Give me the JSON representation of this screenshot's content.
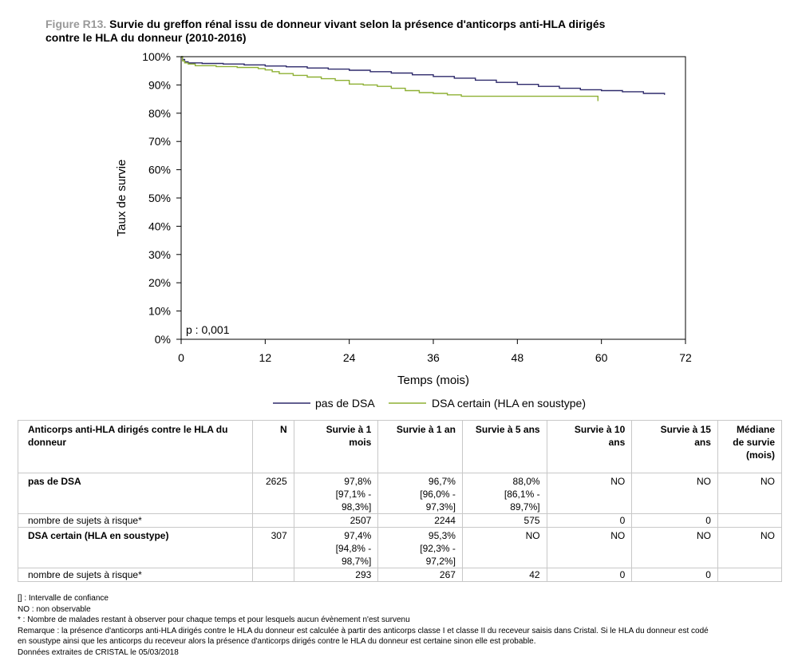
{
  "title": {
    "figure_label": "Figure R13.",
    "text_line1": " Survie du greffon rénal issu de donneur vivant selon la présence d'anticorps anti-HLA dirigés",
    "text_line2": "contre le HLA du donneur (2010-2016)"
  },
  "chart_data": {
    "type": "line",
    "title": "Figure R13. Survie du greffon rénal issu de donneur vivant selon la présence d'anticorps anti-HLA dirigés contre le HLA du donneur (2010-2016)",
    "xlabel": "Temps (mois)",
    "ylabel": "Taux de survie",
    "xlim": [
      0,
      72
    ],
    "ylim": [
      0,
      100
    ],
    "x_ticks": [
      0,
      12,
      24,
      36,
      48,
      60,
      72
    ],
    "y_ticks": [
      0,
      10,
      20,
      30,
      40,
      50,
      60,
      70,
      80,
      90,
      100
    ],
    "y_tick_labels": [
      "0%",
      "10%",
      "20%",
      "30%",
      "40%",
      "50%",
      "60%",
      "70%",
      "80%",
      "90%",
      "100%"
    ],
    "annotation": "p : 0,001",
    "legend_position": "bottom",
    "series": [
      {
        "name": "pas de DSA",
        "color": "#2e2a6b",
        "step": true,
        "x": [
          0,
          0.2,
          0.5,
          1,
          3,
          6,
          9,
          12,
          15,
          18,
          21,
          24,
          27,
          30,
          33,
          36,
          39,
          42,
          45,
          48,
          51,
          54,
          57,
          60,
          63,
          66,
          69
        ],
        "y": [
          100,
          99.0,
          98.2,
          97.8,
          97.6,
          97.4,
          97.1,
          96.7,
          96.4,
          96.0,
          95.6,
          95.2,
          94.7,
          94.2,
          93.6,
          93.0,
          92.4,
          91.7,
          90.9,
          90.2,
          89.5,
          88.8,
          88.3,
          88.0,
          87.6,
          87.0,
          86.5
        ]
      },
      {
        "name": "DSA certain (HLA en soustype)",
        "color": "#8eb034",
        "step": true,
        "x": [
          0,
          0.2,
          0.5,
          1,
          2,
          5,
          8,
          11,
          12,
          13,
          14,
          16,
          18,
          20,
          22,
          24,
          26,
          28,
          30,
          32,
          34,
          36,
          38,
          40,
          59,
          59.5
        ],
        "y": [
          100,
          98.5,
          97.8,
          97.4,
          96.8,
          96.5,
          96.2,
          95.8,
          95.3,
          94.7,
          94.0,
          93.4,
          92.8,
          92.2,
          91.6,
          90.3,
          90.0,
          89.5,
          88.8,
          88.0,
          87.3,
          87.0,
          86.5,
          86.0,
          86.0,
          84.3
        ]
      }
    ]
  },
  "table": {
    "headers": [
      "Anticorps anti-HLA dirigés contre le HLA du donneur",
      "N",
      "Survie à 1 mois",
      "Survie à 1 an",
      "Survie à 5 ans",
      "Survie à 10 ans",
      "Survie à 15 ans",
      "Médiane de survie (mois)"
    ],
    "rows": [
      {
        "name": "pas de DSA",
        "n": "2625",
        "m1": [
          "97,8%",
          "[97,1% -",
          "98,3%]"
        ],
        "y1": [
          "96,7%",
          "[96,0% -",
          "97,3%]"
        ],
        "y5": [
          "88,0%",
          "[86,1% -",
          "89,7%]"
        ],
        "y10": "NO",
        "y15": "NO",
        "median": "NO",
        "risk_label": "nombre de sujets à risque*",
        "risk": [
          "2507",
          "2244",
          "575",
          "0",
          "0"
        ]
      },
      {
        "name": "DSA certain (HLA en soustype)",
        "n": "307",
        "m1": [
          "97,4%",
          "[94,8% -",
          "98,7%]"
        ],
        "y1": [
          "95,3%",
          "[92,3% -",
          "97,2%]"
        ],
        "y5": [
          "NO"
        ],
        "y10": "NO",
        "y15": "NO",
        "median": "NO",
        "risk_label": "nombre de sujets à risque*",
        "risk": [
          "293",
          "267",
          "42",
          "0",
          "0"
        ]
      }
    ]
  },
  "notes": [
    "[] : Intervalle de confiance",
    "NO : non observable",
    "* : Nombre de malades restant à observer pour chaque temps et pour lesquels aucun évènement n'est survenu",
    "Remarque : la présence d'anticorps anti-HLA dirigés contre le HLA du donneur est calculée à partir des anticorps classe I et classe II du receveur saisis dans Cristal. Si le HLA du donneur est codé",
    "en soustype ainsi que les anticorps du receveur alors la présence d'anticorps dirigés contre le HLA du donneur est certaine sinon elle est probable.",
    "Données extraites de CRISTAL le 05/03/2018"
  ]
}
